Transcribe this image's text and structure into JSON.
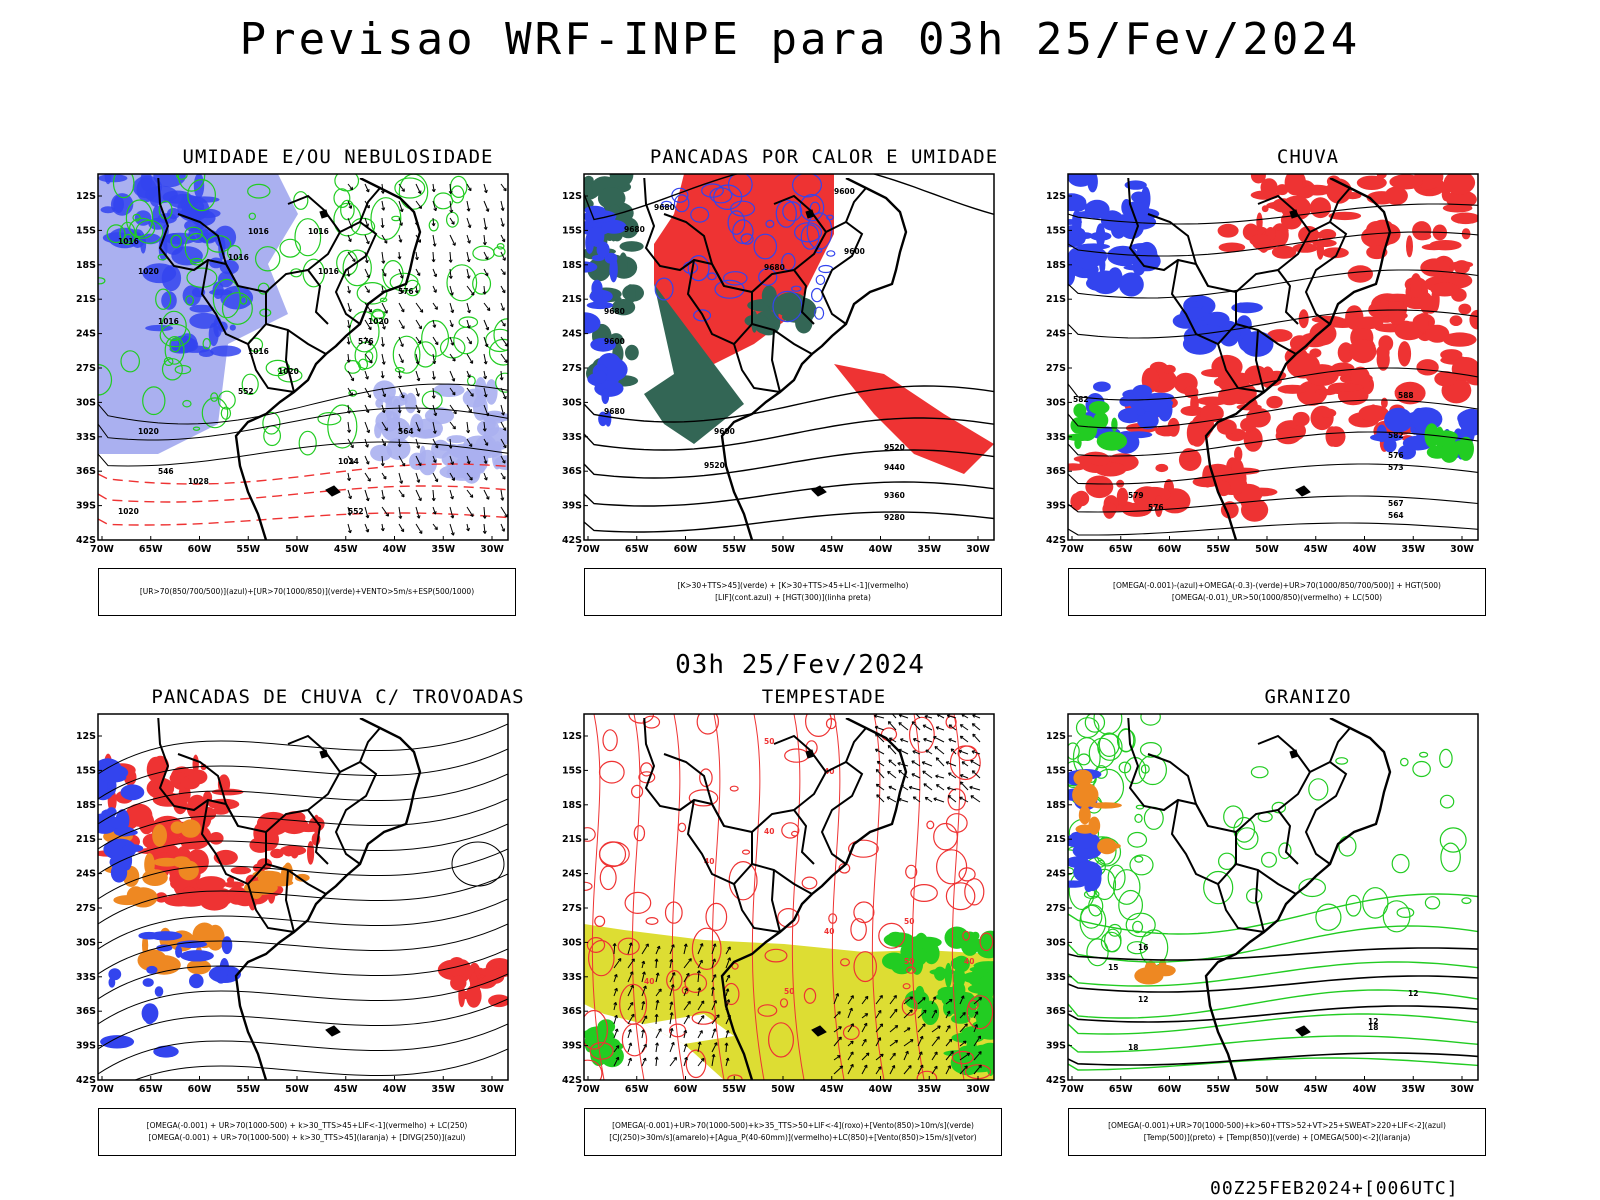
{
  "main_title": "Previsao WRF-INPE  para 03h 25/Fev/2024",
  "mid_title": "03h 25/Fev/2024",
  "footer": "00Z25FEB2024+[006UTC]",
  "axes": {
    "lat_labels": [
      "12S",
      "15S",
      "18S",
      "21S",
      "24S",
      "27S",
      "30S",
      "33S",
      "36S",
      "39S",
      "42S"
    ],
    "lon_labels": [
      "70W",
      "65W",
      "60W",
      "55W",
      "50W",
      "45W",
      "40W",
      "35W",
      "30W"
    ]
  },
  "colors": {
    "blue": "#3344ee",
    "light_blue": "#aab0f0",
    "green": "#22cc22",
    "red": "#ee3333",
    "dark_teal": "#336655",
    "orange": "#ee8822",
    "yellow": "#dddd33",
    "black": "#000000"
  },
  "panels": [
    {
      "title": "UMIDADE E/OU NEBULOSIDADE",
      "legend": [
        "[UR>70(850/700/500)](azul)+[UR>70(1000/850)](verde)+VENTO>5m/s+ESP(500/1000)"
      ],
      "contour_labels": [
        "1016",
        "1016",
        "1016",
        "1016",
        "1020",
        "1016",
        "1016",
        "1020",
        "1016",
        "1020",
        "1020",
        "1024",
        "1028",
        "1020",
        "576",
        "576",
        "552",
        "564",
        "546",
        "552"
      ]
    },
    {
      "title": "PANCADAS POR CALOR E UMIDADE",
      "legend": [
        "[K>30+TTS>45](verde) + [K>30+TTS>45+LI<-1](vermelho)",
        "[LIF](cont.azul) + [HGT(300)](linha preta)"
      ],
      "contour_labels": [
        "9600",
        "9680",
        "9680",
        "9680",
        "9680",
        "9600",
        "9600",
        "9680",
        "9600",
        "9520",
        "9520",
        "9440",
        "9360",
        "9280"
      ]
    },
    {
      "title": "CHUVA",
      "legend": [
        "[OMEGA(-0.001)-(azul)+OMEGA(-0.3)-(verde)+UR>70(1000/850/700/500)] + HGT(500)",
        "[OMEGA(-0.01)_UR>50(1000/850)(vermelho) + LC(500)"
      ],
      "contour_labels": [
        "588",
        "582",
        "582",
        "576",
        "573",
        "567",
        "564",
        "579",
        "576"
      ]
    },
    {
      "title": "PANCADAS DE CHUVA C/ TROVOADAS",
      "legend": [
        "[OMEGA(-0.001) + UR>70(1000-500) + k>30_TTS>45+LIF<-1](vermelho) + LC(250)",
        "[OMEGA(-0.001) + UR>70(1000-500) + k>30_TTS>45](laranja) + [DIVG(250)](azul)"
      ],
      "contour_labels": []
    },
    {
      "title": "TEMPESTADE",
      "legend": [
        "[OMEGA(-0.001)+UR>70(1000-500)+k>35_TTS>50+LIF<-4](roxo)+[Vento(850)>10m/s](verde)",
        "[CJ(250)>30m/s](amarelo)+[Agua_P(40-60mm)](vermelho)+LC(850)+[Vento(850)>15m/s](vetor)"
      ],
      "contour_labels": [
        "50",
        "40",
        "40",
        "50",
        "40",
        "50",
        "40",
        "40",
        "50",
        "40"
      ]
    },
    {
      "title": "GRANIZO",
      "legend": [
        "[OMEGA(-0.001)+UR>70(1000-500)+k>60+TTS>52+VT>25+SWEAT>220+LIF<-2](azul)",
        "[Temp(500)](preto) + [Temp(850)](verde) + [OMEGA(500)<-2](laranja)"
      ],
      "contour_labels": [
        "16",
        "15",
        "12",
        "12",
        "12",
        "18",
        "18"
      ]
    }
  ]
}
